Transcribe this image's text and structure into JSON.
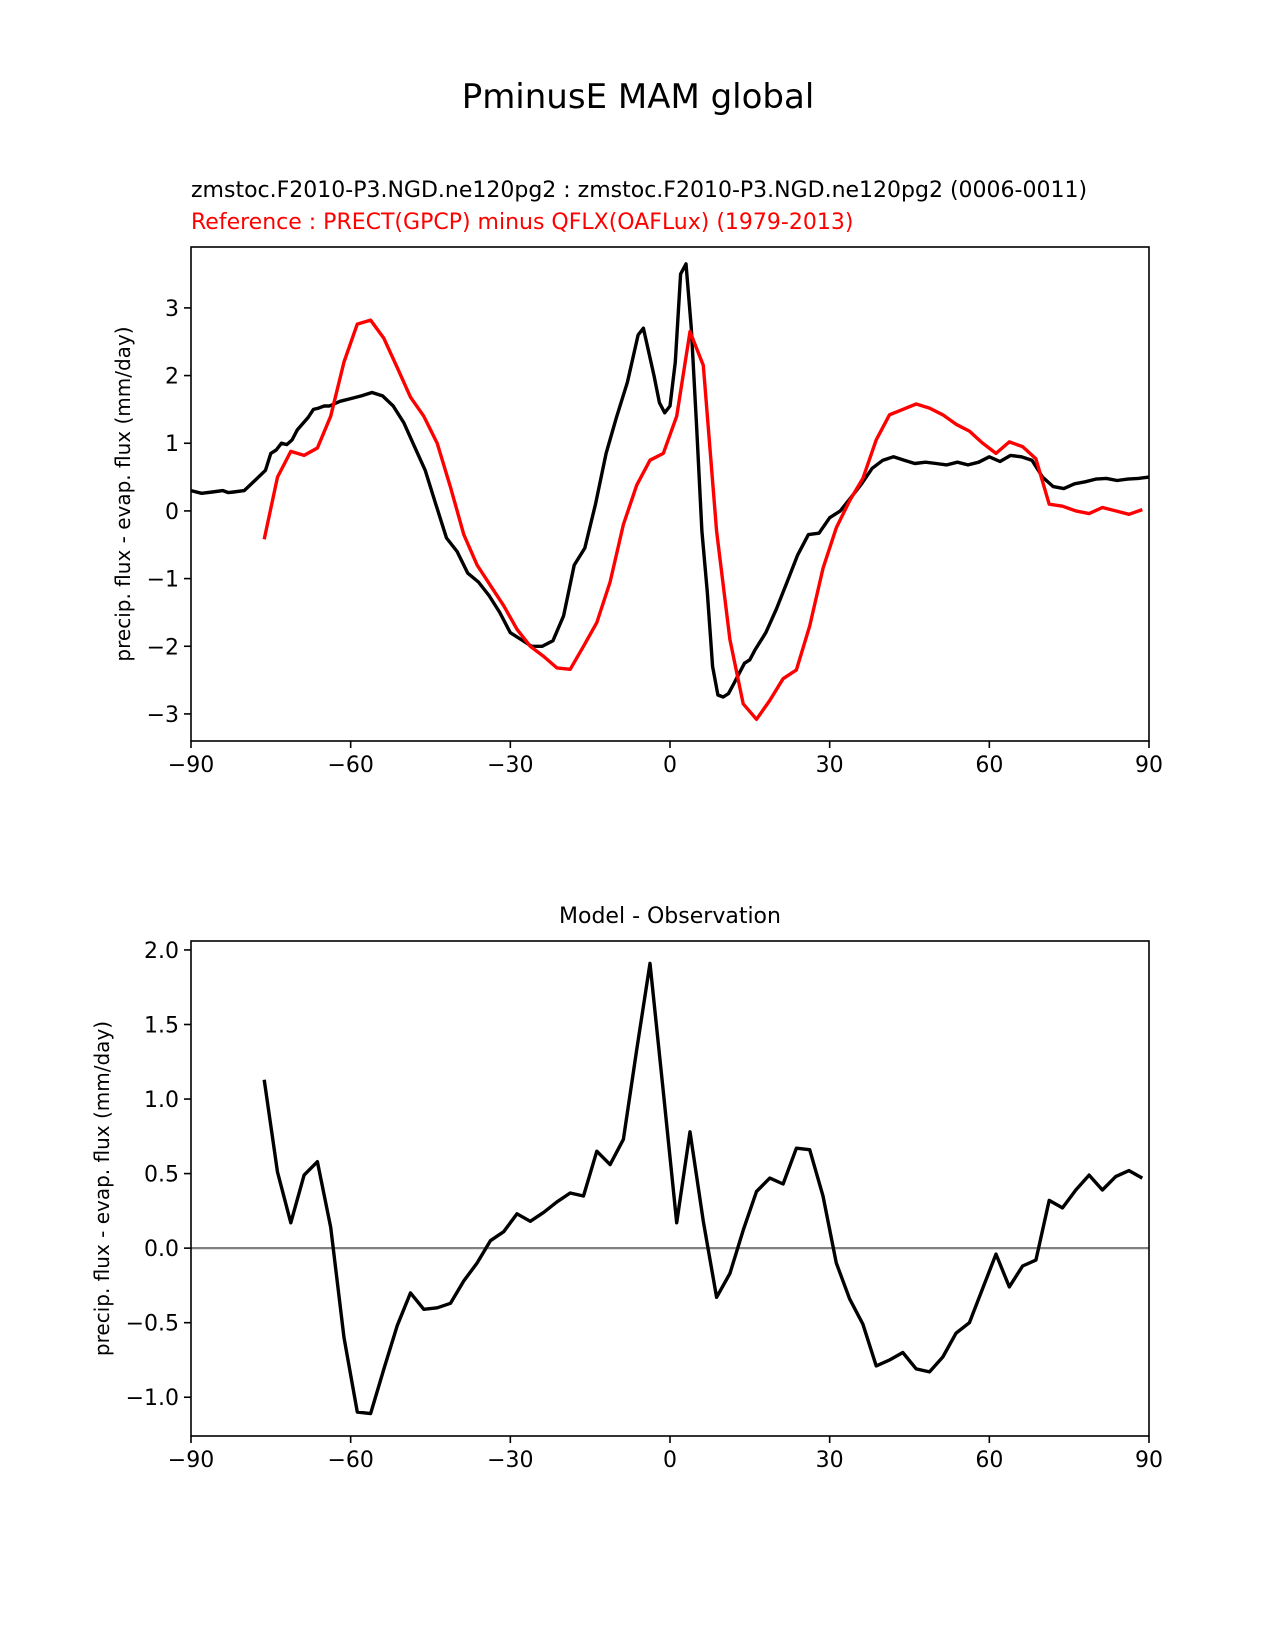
{
  "figure": {
    "suptitle": "PminusE MAM global"
  },
  "chart_data": [
    {
      "type": "line",
      "title_test": "zmstoc.F2010-P3.NGD.ne120pg2 : zmstoc.F2010-P3.NGD.ne120pg2 (0006-0011)",
      "title_ref": "Reference : PRECT(GPCP) minus QFLX(OAFLux) (1979-2013)",
      "xlabel": "",
      "ylabel": "precip. flux - evap. flux (mm/day)",
      "xlim": [
        -90,
        90
      ],
      "ylim": [
        -3.4,
        3.9
      ],
      "xticks": [
        -90,
        -60,
        -30,
        0,
        30,
        60,
        90
      ],
      "xtick_labels": [
        "−90",
        "−60",
        "−30",
        "0",
        "30",
        "60",
        "90"
      ],
      "yticks": [
        -3,
        -2,
        -1,
        0,
        1,
        2,
        3
      ],
      "ytick_labels": [
        "−3",
        "−2",
        "−1",
        "0",
        "1",
        "2",
        "3"
      ],
      "series": [
        {
          "name": "test",
          "color": "#000000",
          "x": [
            -90,
            -88,
            -86,
            -84,
            -83,
            -82,
            -80,
            -78,
            -76,
            -75,
            -74,
            -73,
            -72,
            -71,
            -70,
            -68,
            -67,
            -66,
            -65,
            -64,
            -62,
            -60,
            -58,
            -56,
            -54,
            -52,
            -50,
            -48,
            -46,
            -44,
            -42,
            -40,
            -38,
            -36,
            -34,
            -32,
            -30,
            -28,
            -26,
            -24,
            -22,
            -20,
            -18,
            -16,
            -14,
            -12,
            -10,
            -8,
            -6,
            -5,
            -4,
            -3,
            -2,
            -1,
            0,
            1,
            2,
            3,
            4,
            5,
            6,
            7,
            8,
            9,
            10,
            11,
            12,
            13,
            14,
            15,
            16,
            18,
            20,
            22,
            24,
            26,
            28,
            30,
            32,
            34,
            36,
            38,
            40,
            42,
            44,
            46,
            48,
            50,
            52,
            54,
            56,
            58,
            60,
            62,
            64,
            66,
            68,
            70,
            72,
            74,
            76,
            78,
            80,
            82,
            84,
            86,
            88,
            90
          ],
          "y": [
            0.3,
            0.26,
            0.28,
            0.3,
            0.27,
            0.28,
            0.3,
            0.45,
            0.6,
            0.85,
            0.9,
            1.0,
            0.98,
            1.05,
            1.2,
            1.38,
            1.5,
            1.52,
            1.55,
            1.55,
            1.62,
            1.66,
            1.7,
            1.75,
            1.7,
            1.55,
            1.3,
            0.95,
            0.6,
            0.1,
            -0.4,
            -0.6,
            -0.92,
            -1.05,
            -1.25,
            -1.5,
            -1.8,
            -1.9,
            -2.0,
            -2.0,
            -1.92,
            -1.55,
            -0.8,
            -0.55,
            0.1,
            0.85,
            1.4,
            1.9,
            2.6,
            2.7,
            2.35,
            2.0,
            1.6,
            1.45,
            1.55,
            2.2,
            3.5,
            3.65,
            2.7,
            1.25,
            -0.3,
            -1.2,
            -2.3,
            -2.72,
            -2.75,
            -2.7,
            -2.55,
            -2.4,
            -2.25,
            -2.2,
            -2.05,
            -1.8,
            -1.45,
            -1.05,
            -0.65,
            -0.35,
            -0.33,
            -0.1,
            0.0,
            0.2,
            0.4,
            0.63,
            0.75,
            0.8,
            0.75,
            0.7,
            0.72,
            0.7,
            0.68,
            0.72,
            0.68,
            0.72,
            0.8,
            0.73,
            0.82,
            0.8,
            0.75,
            0.5,
            0.36,
            0.33,
            0.4,
            0.43,
            0.47,
            0.48,
            0.45,
            0.47,
            0.48,
            0.5
          ]
        },
        {
          "name": "reference",
          "color": "#ff0000",
          "x": [
            -76.25,
            -73.75,
            -71.25,
            -68.75,
            -66.25,
            -63.75,
            -61.25,
            -58.75,
            -56.25,
            -53.75,
            -51.25,
            -48.75,
            -46.25,
            -43.75,
            -41.25,
            -38.75,
            -36.25,
            -33.75,
            -31.25,
            -28.75,
            -26.25,
            -23.75,
            -21.25,
            -18.75,
            -16.25,
            -13.75,
            -11.25,
            -8.75,
            -6.25,
            -3.75,
            -1.25,
            1.25,
            3.75,
            6.25,
            8.75,
            11.25,
            13.75,
            16.25,
            18.75,
            21.25,
            23.75,
            26.25,
            28.75,
            31.25,
            33.75,
            36.25,
            38.75,
            41.25,
            43.75,
            46.25,
            48.75,
            51.25,
            53.75,
            56.25,
            58.75,
            61.25,
            63.75,
            66.25,
            68.75,
            71.25,
            73.75,
            76.25,
            78.75,
            81.25,
            83.75,
            86.25,
            88.75
          ],
          "y": [
            -0.42,
            0.5,
            0.88,
            0.82,
            0.93,
            1.4,
            2.2,
            2.76,
            2.82,
            2.55,
            2.12,
            1.68,
            1.4,
            1.0,
            0.35,
            -0.35,
            -0.8,
            -1.1,
            -1.4,
            -1.75,
            -2.0,
            -2.15,
            -2.32,
            -2.34,
            -2.0,
            -1.65,
            -1.05,
            -0.2,
            0.38,
            0.75,
            0.85,
            1.4,
            2.65,
            2.15,
            -0.3,
            -1.9,
            -2.85,
            -3.08,
            -2.8,
            -2.48,
            -2.35,
            -1.7,
            -0.85,
            -0.25,
            0.15,
            0.48,
            1.05,
            1.42,
            1.5,
            1.58,
            1.52,
            1.42,
            1.28,
            1.18,
            1.0,
            0.85,
            1.02,
            0.95,
            0.77,
            0.1,
            0.07,
            0.0,
            -0.04,
            0.05,
            0.0,
            -0.05,
            0.02
          ]
        }
      ]
    },
    {
      "type": "line",
      "title": "Model - Observation",
      "xlabel": "",
      "ylabel": "precip. flux - evap. flux (mm/day)",
      "xlim": [
        -90,
        90
      ],
      "ylim": [
        -1.26,
        2.06
      ],
      "xticks": [
        -90,
        -60,
        -30,
        0,
        30,
        60,
        90
      ],
      "xtick_labels": [
        "−90",
        "−60",
        "−30",
        "0",
        "30",
        "60",
        "90"
      ],
      "yticks": [
        -1.0,
        -0.5,
        0.0,
        0.5,
        1.0,
        1.5,
        2.0
      ],
      "ytick_labels": [
        "−1.0",
        "−0.5",
        "0.0",
        "0.5",
        "1.0",
        "1.5",
        "2.0"
      ],
      "zero_line": {
        "y": 0,
        "color": "#808080"
      },
      "series": [
        {
          "name": "difference",
          "color": "#000000",
          "x": [
            -76.25,
            -73.75,
            -71.25,
            -68.75,
            -66.25,
            -63.75,
            -61.25,
            -58.75,
            -56.25,
            -53.75,
            -51.25,
            -48.75,
            -46.25,
            -43.75,
            -41.25,
            -38.75,
            -36.25,
            -33.75,
            -31.25,
            -28.75,
            -26.25,
            -23.75,
            -21.25,
            -18.75,
            -16.25,
            -13.75,
            -11.25,
            -8.75,
            -6.25,
            -3.75,
            -1.25,
            1.25,
            3.75,
            6.25,
            8.75,
            11.25,
            13.75,
            16.25,
            18.75,
            21.25,
            23.75,
            26.25,
            28.75,
            31.25,
            33.75,
            36.25,
            38.75,
            41.25,
            43.75,
            46.25,
            48.75,
            51.25,
            53.75,
            56.25,
            58.75,
            61.25,
            63.75,
            66.25,
            68.75,
            71.25,
            73.75,
            76.25,
            78.75,
            81.25,
            83.75,
            86.25,
            88.75
          ],
          "y": [
            1.13,
            0.51,
            0.17,
            0.49,
            0.58,
            0.14,
            -0.6,
            -1.1,
            -1.11,
            -0.81,
            -0.52,
            -0.3,
            -0.41,
            -0.4,
            -0.37,
            -0.22,
            -0.1,
            0.05,
            0.11,
            0.23,
            0.18,
            0.24,
            0.31,
            0.37,
            0.35,
            0.65,
            0.56,
            0.73,
            1.33,
            1.91,
            1.05,
            0.17,
            0.78,
            0.18,
            -0.33,
            -0.17,
            0.12,
            0.38,
            0.47,
            0.43,
            0.67,
            0.66,
            0.35,
            -0.1,
            -0.34,
            -0.51,
            -0.79,
            -0.75,
            -0.7,
            -0.81,
            -0.83,
            -0.73,
            -0.57,
            -0.5,
            -0.27,
            -0.04,
            -0.26,
            -0.12,
            -0.08,
            0.32,
            0.27,
            0.39,
            0.49,
            0.39,
            0.48,
            0.52,
            0.47
          ]
        }
      ]
    }
  ]
}
